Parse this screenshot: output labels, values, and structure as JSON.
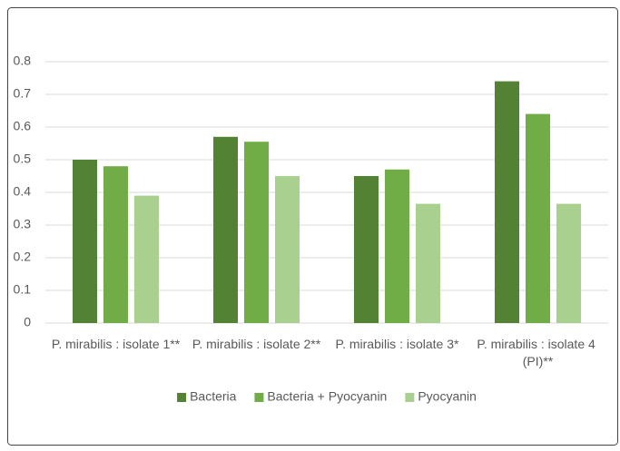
{
  "chart_data": {
    "type": "bar",
    "categories": [
      "P. mirabilis : isolate 1**",
      "P. mirabilis : isolate 2**",
      "P. mirabilis : isolate 3*",
      "P. mirabilis : isolate 4 (PI)**"
    ],
    "series": [
      {
        "name": "Bacteria",
        "color": "#548235",
        "values": [
          0.5,
          0.57,
          0.45,
          0.74
        ]
      },
      {
        "name": "Bacteria + Pyocyanin",
        "color": "#70ad47",
        "values": [
          0.48,
          0.555,
          0.47,
          0.64
        ]
      },
      {
        "name": "Pyocyanin",
        "color": "#a9d08e",
        "values": [
          0.39,
          0.45,
          0.365,
          0.365
        ]
      }
    ],
    "ylim": [
      0,
      0.8
    ],
    "yticks": [
      0,
      0.1,
      0.2,
      0.3,
      0.4,
      0.5,
      0.6,
      0.7,
      0.8
    ],
    "grid": true,
    "legend": "bottom"
  }
}
